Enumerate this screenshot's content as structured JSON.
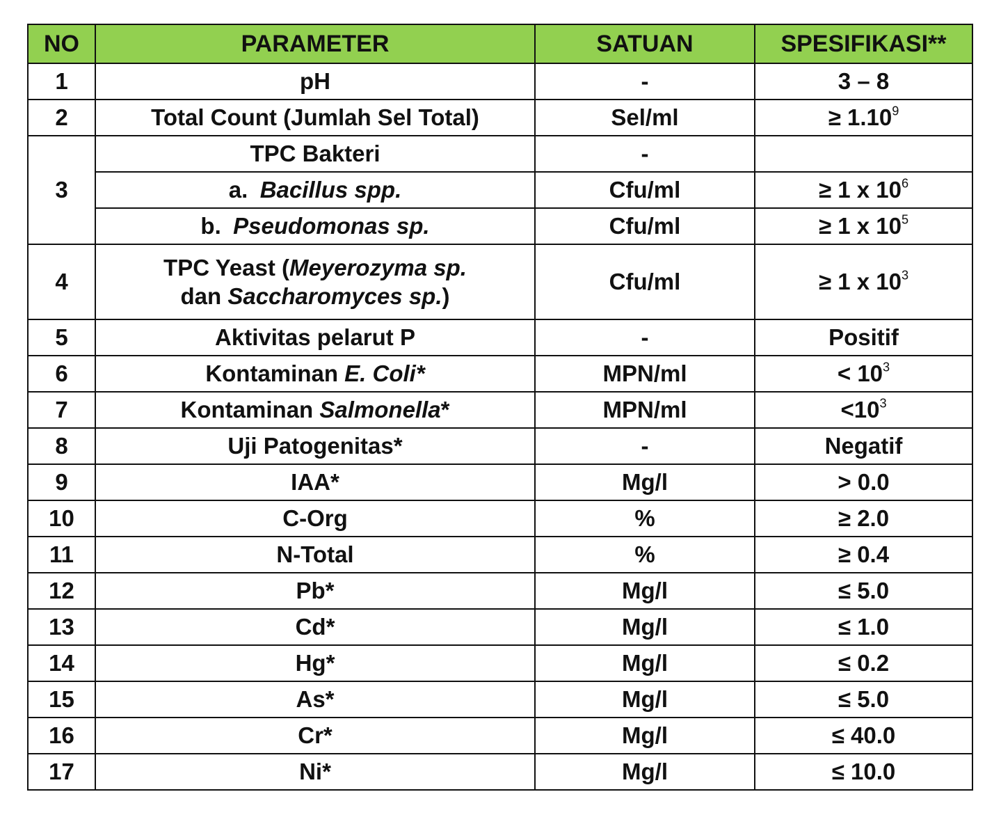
{
  "header": {
    "no": "NO",
    "parameter": "PARAMETER",
    "satuan": "SATUAN",
    "spesifikasi": "SPESIFIKASI**"
  },
  "rows": {
    "r1": {
      "no": "1",
      "param": "pH",
      "satuan": "-",
      "spec": "3 – 8"
    },
    "r2": {
      "no": "2",
      "param": "Total Count (Jumlah Sel Total)",
      "satuan": "Sel/ml",
      "spec_base": "≥ 1.10",
      "spec_exp": "9"
    },
    "r3": {
      "no": "3",
      "param": "TPC Bakteri",
      "satuan": "-",
      "spec": "",
      "a": {
        "prefix": "a.",
        "name": "Bacillus spp.",
        "satuan": "Cfu/ml",
        "spec_base": "≥ 1 x 10",
        "spec_exp": "6"
      },
      "b": {
        "prefix": "b.",
        "name": "Pseudomonas sp.",
        "satuan": "Cfu/ml",
        "spec_base": "≥ 1 x 10",
        "spec_exp": "5"
      }
    },
    "r4": {
      "no": "4",
      "line1_text": "TPC Yeast (",
      "line1_italic": "Meyerozyma sp.",
      "line2_text": "dan ",
      "line2_italic": "Saccharomyces sp.",
      "line2_close": ")",
      "satuan": "Cfu/ml",
      "spec_base": "≥ 1 x 10",
      "spec_exp": "3"
    },
    "r5": {
      "no": "5",
      "param": "Aktivitas pelarut P",
      "satuan": "-",
      "spec": "Positif"
    },
    "r6": {
      "no": "6",
      "param_text": "Kontaminan ",
      "param_italic": "E. Coli*",
      "satuan": "MPN/ml",
      "spec_base": "< 10",
      "spec_exp": "3"
    },
    "r7": {
      "no": "7",
      "param_text": "Kontaminan ",
      "param_italic": "Salmonella",
      "param_suffix": "*",
      "satuan": "MPN/ml",
      "spec_base": "<10",
      "spec_exp": "3"
    },
    "r8": {
      "no": "8",
      "param": "Uji Patogenitas*",
      "satuan": "-",
      "spec": "Negatif"
    },
    "r9": {
      "no": "9",
      "param": "IAA*",
      "satuan": "Mg/l",
      "spec": "> 0.0"
    },
    "r10": {
      "no": "10",
      "param": "C-Org",
      "satuan": "%",
      "spec": "≥ 2.0"
    },
    "r11": {
      "no": "11",
      "param": "N-Total",
      "satuan": "%",
      "spec": "≥ 0.4"
    },
    "r12": {
      "no": "12",
      "param": "Pb*",
      "satuan": "Mg/l",
      "spec": "≤ 5.0"
    },
    "r13": {
      "no": "13",
      "param": "Cd*",
      "satuan": "Mg/l",
      "spec": "≤ 1.0"
    },
    "r14": {
      "no": "14",
      "param": "Hg*",
      "satuan": "Mg/l",
      "spec": "≤ 0.2"
    },
    "r15": {
      "no": "15",
      "param": "As*",
      "satuan": "Mg/l",
      "spec": "≤ 5.0"
    },
    "r16": {
      "no": "16",
      "param": "Cr*",
      "satuan": "Mg/l",
      "spec": "≤ 40.0"
    },
    "r17": {
      "no": "17",
      "param": "Ni*",
      "satuan": "Mg/l",
      "spec": "≤ 10.0"
    }
  },
  "colors": {
    "header_bg": "#92d050",
    "border": "#111111",
    "text": "#111111"
  }
}
